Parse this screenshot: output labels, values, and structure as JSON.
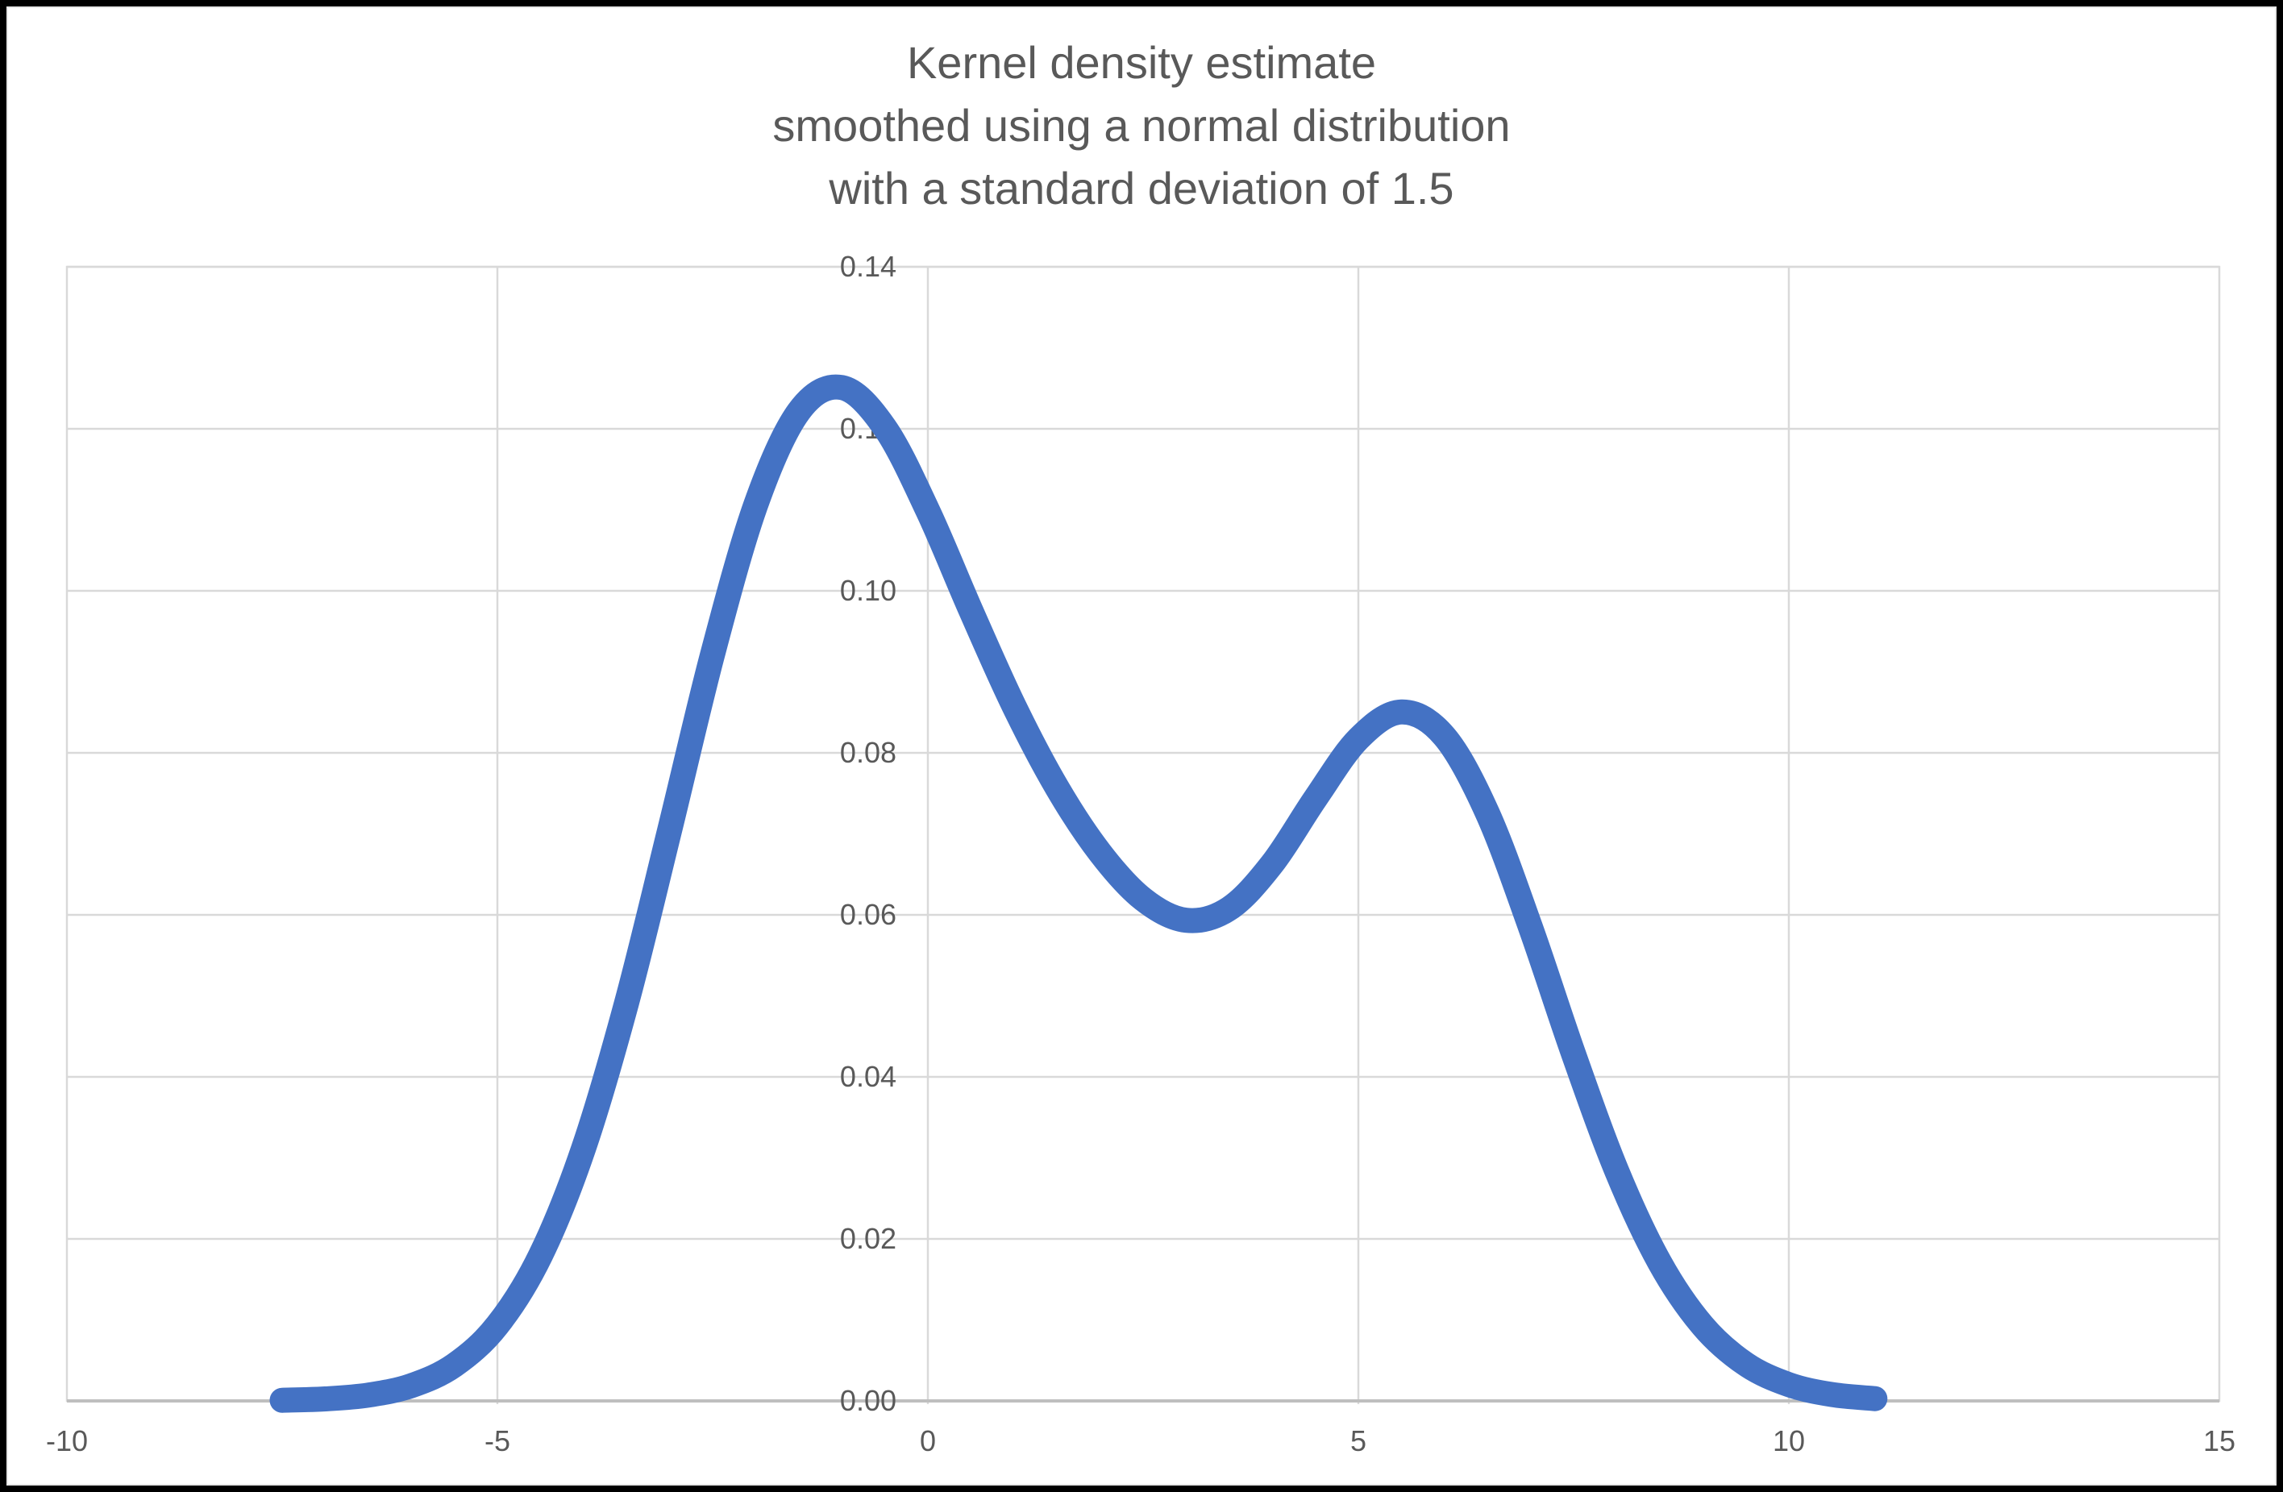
{
  "title": {
    "lines": [
      "Kernel density estimate",
      "smoothed using a normal distribution",
      "with a standard deviation of 1.5"
    ]
  },
  "colors": {
    "curve": "#4472C4",
    "text": "#595959",
    "gridline": "#D9D9D9",
    "axis_line": "#BFBFBF",
    "background": "#FFFFFF",
    "frame": "#000000"
  },
  "chart_data": {
    "type": "line",
    "title": "Kernel density estimate smoothed using a normal distribution with a standard deviation of 1.5",
    "xlabel": "",
    "ylabel": "",
    "xlim": [
      -10,
      15
    ],
    "ylim": [
      0,
      0.14
    ],
    "grid": true,
    "legend": "none",
    "x_ticks": {
      "values": [
        -10,
        -5,
        0,
        5,
        10,
        15
      ],
      "labels": [
        "-10",
        "-5",
        "0",
        "5",
        "10",
        "15"
      ]
    },
    "y_ticks": {
      "values": [
        0,
        0.02,
        0.04,
        0.06,
        0.08,
        0.1,
        0.12,
        0.14
      ],
      "labels": [
        "0.00",
        "0.02",
        "0.04",
        "0.06",
        "0.08",
        "0.10",
        "0.12",
        "0.14"
      ]
    },
    "series": [
      {
        "name": "kernel density estimate",
        "x": [
          -7.5,
          -7.0,
          -6.5,
          -6.0,
          -5.5,
          -5.0,
          -4.5,
          -4.0,
          -3.5,
          -3.0,
          -2.5,
          -2.0,
          -1.5,
          -1.0,
          -0.5,
          0.0,
          0.5,
          1.0,
          1.5,
          2.0,
          2.5,
          3.0,
          3.5,
          4.0,
          4.5,
          5.0,
          5.5,
          6.0,
          6.5,
          7.0,
          7.5,
          8.0,
          8.5,
          9.0,
          9.5,
          10.0,
          10.5,
          11.0
        ],
        "y": [
          8e-05,
          0.00025,
          0.00072,
          0.00188,
          0.00441,
          0.00935,
          0.01794,
          0.03115,
          0.04911,
          0.07043,
          0.0922,
          0.11059,
          0.12212,
          0.12509,
          0.12014,
          0.10987,
          0.09756,
          0.08579,
          0.07571,
          0.06767,
          0.06193,
          0.05933,
          0.06078,
          0.06631,
          0.07435,
          0.08172,
          0.08504,
          0.08202,
          0.07254,
          0.05845,
          0.04281,
          0.02842,
          0.01708,
          0.00927,
          0.00454,
          0.00201,
          0.00079,
          0.00028
        ]
      }
    ]
  }
}
